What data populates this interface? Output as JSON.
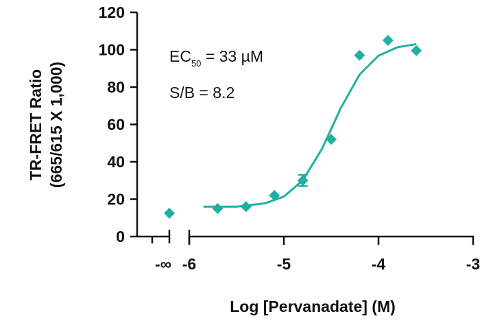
{
  "chart_data": {
    "type": "scatter",
    "x_label": "Log [Pervanadate] (M)",
    "y_label": [
      "TR-FRET Ratio",
      "(665/615 X 1,000)"
    ],
    "annotations": [
      {
        "text": "EC",
        "sub": "50",
        "rest": " = 33 µM"
      },
      {
        "text": "S/B = 8.2"
      }
    ],
    "color": "#1fb0a2",
    "x": [
      -5.7,
      -5.4,
      -5.1,
      -4.8,
      -4.5,
      -4.2,
      -3.9,
      -3.6
    ],
    "values": [
      15,
      16,
      22,
      30,
      52,
      97,
      105,
      99.5
    ],
    "errors": [
      null,
      null,
      null,
      3,
      null,
      null,
      null,
      null
    ],
    "break": {
      "label": "-∞",
      "value": 12.5
    },
    "curve": {
      "x": [
        -5.85,
        -5.5,
        -5.2,
        -5.0,
        -4.8,
        -4.6,
        -4.5,
        -4.4,
        -4.2,
        -4.0,
        -3.8,
        -3.6
      ],
      "values": [
        16,
        16,
        17.8,
        21.4,
        30.1,
        46.7,
        57.5,
        68.6,
        86.7,
        96.8,
        101.3,
        103
      ]
    },
    "xlim": [
      -6,
      -3
    ],
    "xticks": [
      -6,
      -5,
      -4,
      -3
    ],
    "ylim": [
      0,
      120
    ],
    "yticks": [
      0,
      20,
      40,
      60,
      80,
      100,
      120
    ]
  }
}
